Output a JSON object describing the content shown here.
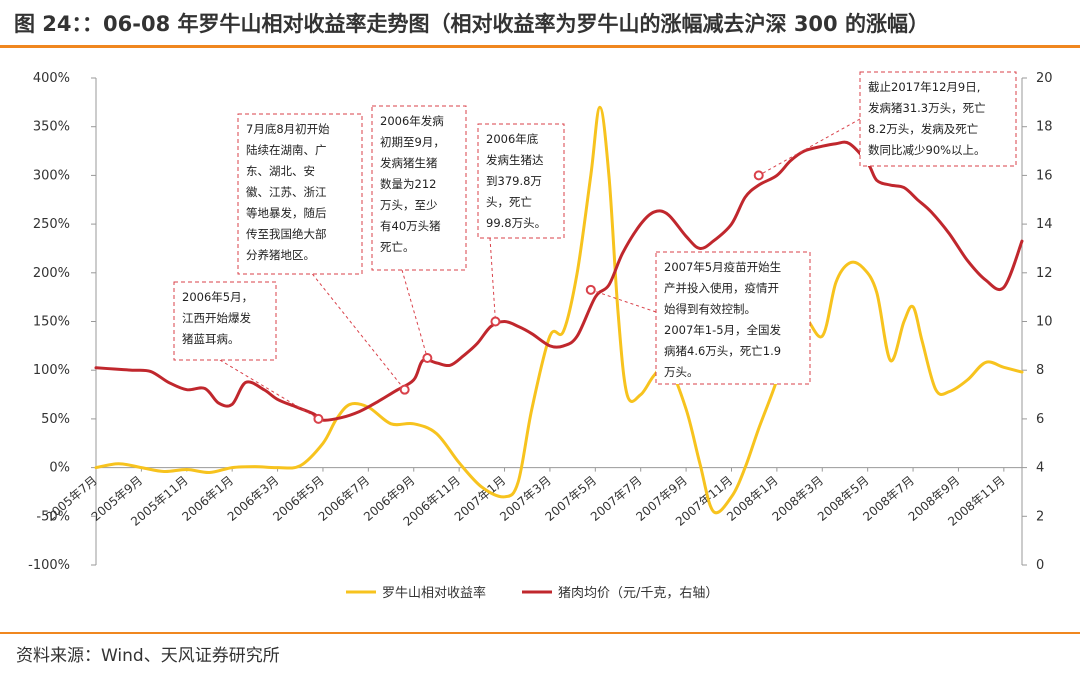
{
  "title": "图 24：：06-08 年罗牛山相对收益率走势图（相对收益率为罗牛山的涨幅减去沪深 300 的涨幅）",
  "source": "资料来源：Wind、天风证券研究所",
  "colors": {
    "yellow": "#f7c31e",
    "red": "#c0272d",
    "orange": "#f0871f",
    "annotation": "#d9414a",
    "axis": "#999999"
  },
  "chart_data": {
    "type": "line",
    "title": "",
    "x_ticks": [
      "2005年7月",
      "2005年9月",
      "2005年11月",
      "2006年1月",
      "2006年3月",
      "2006年5月",
      "2006年7月",
      "2006年9月",
      "2006年11月",
      "2007年1月",
      "2007年3月",
      "2007年5月",
      "2007年7月",
      "2007年9月",
      "2007年11月",
      "2008年1月",
      "2008年3月",
      "2008年5月",
      "2008年7月",
      "2008年9月",
      "2008年11月"
    ],
    "y_left": {
      "ylim": [
        -100,
        400
      ],
      "ticks": [
        "-100%",
        "-50%",
        "0%",
        "50%",
        "100%",
        "150%",
        "200%",
        "250%",
        "300%",
        "350%",
        "400%"
      ]
    },
    "y_right": {
      "ylim": [
        0,
        20
      ],
      "ticks": [
        "0",
        "2",
        "4",
        "6",
        "8",
        "10",
        "12",
        "14",
        "16",
        "18",
        "20"
      ]
    },
    "legend_position": "bottom",
    "series": [
      {
        "name": "罗牛山相对收益率",
        "axis": "left",
        "color": "#f7c31e",
        "x": [
          0,
          0.5,
          1,
          1.5,
          2,
          2.5,
          3,
          3.5,
          4,
          4.5,
          5,
          5.3,
          5.6,
          6,
          6.5,
          7,
          7.5,
          8,
          8.5,
          9,
          9.3,
          9.6,
          10,
          10.3,
          10.6,
          10.9,
          11.1,
          11.3,
          11.5,
          11.7,
          12,
          12.3,
          12.6,
          13,
          13.3,
          13.6,
          14,
          14.3,
          14.6,
          15,
          15.3,
          15.6,
          16,
          16.3,
          16.6,
          16.9,
          17.2,
          17.5,
          17.8,
          18,
          18.2,
          18.5,
          18.8,
          19.2,
          19.6,
          20,
          20.4
        ],
        "y": [
          0,
          4,
          0,
          -4,
          -2,
          -5,
          0,
          1,
          0,
          2,
          25,
          50,
          65,
          62,
          45,
          45,
          35,
          5,
          -20,
          -30,
          -15,
          60,
          135,
          140,
          200,
          300,
          370,
          300,
          160,
          75,
          75,
          95,
          105,
          60,
          5,
          -45,
          -30,
          0,
          40,
          90,
          140,
          155,
          135,
          190,
          210,
          205,
          180,
          110,
          150,
          165,
          130,
          80,
          78,
          90,
          108,
          103,
          98
        ]
      },
      {
        "name": "猪肉均价（元/千克，右轴）",
        "axis": "right",
        "color": "#c0272d",
        "x": [
          0,
          0.4,
          0.8,
          1.2,
          1.6,
          2,
          2.4,
          2.7,
          3,
          3.3,
          3.7,
          4,
          4.4,
          4.8,
          5,
          5.4,
          5.8,
          6.2,
          6.6,
          7,
          7.2,
          7.5,
          7.8,
          8.1,
          8.4,
          8.7,
          9,
          9.3,
          9.6,
          10,
          10.3,
          10.6,
          11,
          11.3,
          11.6,
          12,
          12.3,
          12.6,
          13,
          13.3,
          13.6,
          14,
          14.3,
          14.6,
          15,
          15.3,
          15.6,
          16,
          16.3,
          16.6,
          17,
          17.2,
          17.5,
          17.8,
          18.1,
          18.4,
          18.8,
          19.2,
          19.6,
          20,
          20.4
        ],
        "y": [
          8.1,
          8.05,
          8.0,
          7.95,
          7.5,
          7.2,
          7.25,
          6.65,
          6.6,
          7.5,
          7.2,
          6.8,
          6.5,
          6.2,
          5.95,
          6.05,
          6.3,
          6.7,
          7.15,
          7.6,
          8.4,
          8.3,
          8.2,
          8.6,
          9.1,
          9.8,
          10.0,
          9.8,
          9.5,
          9.0,
          9.0,
          9.4,
          11.0,
          11.5,
          12.8,
          14.0,
          14.5,
          14.4,
          13.5,
          13.0,
          13.3,
          14.0,
          15.1,
          15.6,
          16.0,
          16.6,
          17.0,
          17.2,
          17.3,
          17.3,
          16.5,
          15.8,
          15.6,
          15.5,
          15.0,
          14.5,
          13.6,
          12.5,
          11.7,
          11.4,
          13.3
        ]
      }
    ],
    "annotations": [
      {
        "lines": [
          "2006年5月，",
          "江西开始爆发",
          "猪蓝耳病。"
        ],
        "point_x": 4.9,
        "point_y": 6.0,
        "axis": "right"
      },
      {
        "lines": [
          "7月底8月初开始",
          "陆续在湖南、广",
          "东、湖北、安",
          "徽、江苏、浙江",
          "等地暴发，随后",
          "传至我国绝大部",
          "分养猪地区。"
        ],
        "point_x": 6.8,
        "point_y": 7.2,
        "axis": "right"
      },
      {
        "lines": [
          "2006年发病",
          "初期至9月，",
          "发病猪生猪",
          "数量为212",
          "万头，至少",
          "有40万头猪",
          "死亡。"
        ],
        "point_x": 7.3,
        "point_y": 8.5,
        "axis": "right"
      },
      {
        "lines": [
          "2006年底",
          "发病生猪达",
          "到379.8万",
          "头，死亡",
          "99.8万头。"
        ],
        "point_x": 8.8,
        "point_y": 10.0,
        "axis": "right"
      },
      {
        "lines": [
          "2007年5月疫苗开始生",
          "产并投入使用，疫情开",
          "始得到有效控制。",
          "2007年1-5月，全国发",
          "病猪4.6万头，死亡1.9",
          "万头。"
        ],
        "point_x": 10.9,
        "point_y": 11.3,
        "axis": "right"
      },
      {
        "lines": [
          "截止2017年12月9日,",
          "发病猪31.3万头，死亡",
          "8.2万头，发病及死亡",
          "数同比减少90%以上。"
        ],
        "point_x": 14.6,
        "point_y": 16.0,
        "axis": "right"
      }
    ]
  }
}
